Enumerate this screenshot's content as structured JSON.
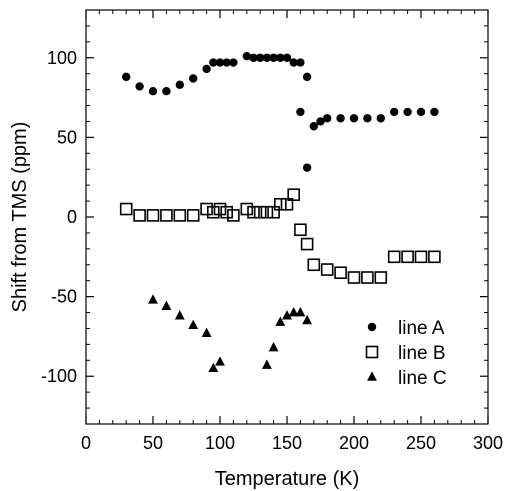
{
  "chart_data": {
    "type": "scatter",
    "xlabel": "Temperature (K)",
    "ylabel": "Shift from TMS (ppm)",
    "xlim": [
      0,
      300
    ],
    "ylim": [
      -130,
      130
    ],
    "xticks": [
      0,
      50,
      100,
      150,
      200,
      250,
      300
    ],
    "yticks": [
      -100,
      -50,
      0,
      50,
      100
    ],
    "xtick_labels": [
      "0",
      "50",
      "100",
      "150",
      "200",
      "250",
      "300"
    ],
    "ytick_labels": [
      "-100",
      "-50",
      "0",
      "50",
      "100"
    ],
    "x_minor_step": 10,
    "y_minor_step": 10,
    "grid": false,
    "legend_position": "bottom-right",
    "series": [
      {
        "name": "line A",
        "marker": "filled-circle",
        "color": "#000000",
        "points": [
          [
            30,
            88
          ],
          [
            40,
            82
          ],
          [
            50,
            79
          ],
          [
            60,
            79
          ],
          [
            70,
            83
          ],
          [
            80,
            87
          ],
          [
            90,
            93
          ],
          [
            95,
            97
          ],
          [
            100,
            97
          ],
          [
            105,
            97
          ],
          [
            110,
            97
          ],
          [
            120,
            101
          ],
          [
            125,
            100
          ],
          [
            130,
            100
          ],
          [
            135,
            100
          ],
          [
            140,
            100
          ],
          [
            145,
            100
          ],
          [
            150,
            100
          ],
          [
            155,
            97
          ],
          [
            160,
            97
          ],
          [
            165,
            88
          ],
          [
            160,
            66
          ],
          [
            165,
            31
          ],
          [
            170,
            57
          ],
          [
            175,
            60
          ],
          [
            180,
            62
          ],
          [
            190,
            62
          ],
          [
            200,
            62
          ],
          [
            210,
            62
          ],
          [
            220,
            62
          ],
          [
            230,
            66
          ],
          [
            240,
            66
          ],
          [
            250,
            66
          ],
          [
            260,
            66
          ]
        ]
      },
      {
        "name": "line B",
        "marker": "open-square",
        "color": "#000000",
        "points": [
          [
            30,
            5
          ],
          [
            40,
            1
          ],
          [
            50,
            1
          ],
          [
            60,
            1
          ],
          [
            70,
            1
          ],
          [
            80,
            1
          ],
          [
            90,
            5
          ],
          [
            95,
            3
          ],
          [
            100,
            5
          ],
          [
            105,
            3
          ],
          [
            110,
            1
          ],
          [
            120,
            5
          ],
          [
            125,
            3
          ],
          [
            130,
            3
          ],
          [
            135,
            3
          ],
          [
            140,
            3
          ],
          [
            145,
            8
          ],
          [
            150,
            8
          ],
          [
            155,
            14
          ],
          [
            160,
            -8
          ],
          [
            165,
            -17
          ],
          [
            170,
            -30
          ],
          [
            180,
            -33
          ],
          [
            190,
            -35
          ],
          [
            200,
            -38
          ],
          [
            210,
            -38
          ],
          [
            220,
            -38
          ],
          [
            230,
            -25
          ],
          [
            240,
            -25
          ],
          [
            250,
            -25
          ],
          [
            260,
            -25
          ]
        ]
      },
      {
        "name": "line C",
        "marker": "filled-triangle",
        "color": "#000000",
        "points": [
          [
            50,
            -52
          ],
          [
            60,
            -56
          ],
          [
            70,
            -62
          ],
          [
            80,
            -68
          ],
          [
            90,
            -73
          ],
          [
            95,
            -95
          ],
          [
            100,
            -91
          ],
          [
            135,
            -93
          ],
          [
            140,
            -82
          ],
          [
            145,
            -66
          ],
          [
            150,
            -62
          ],
          [
            155,
            -60
          ],
          [
            160,
            -60
          ],
          [
            165,
            -65
          ]
        ]
      }
    ]
  }
}
